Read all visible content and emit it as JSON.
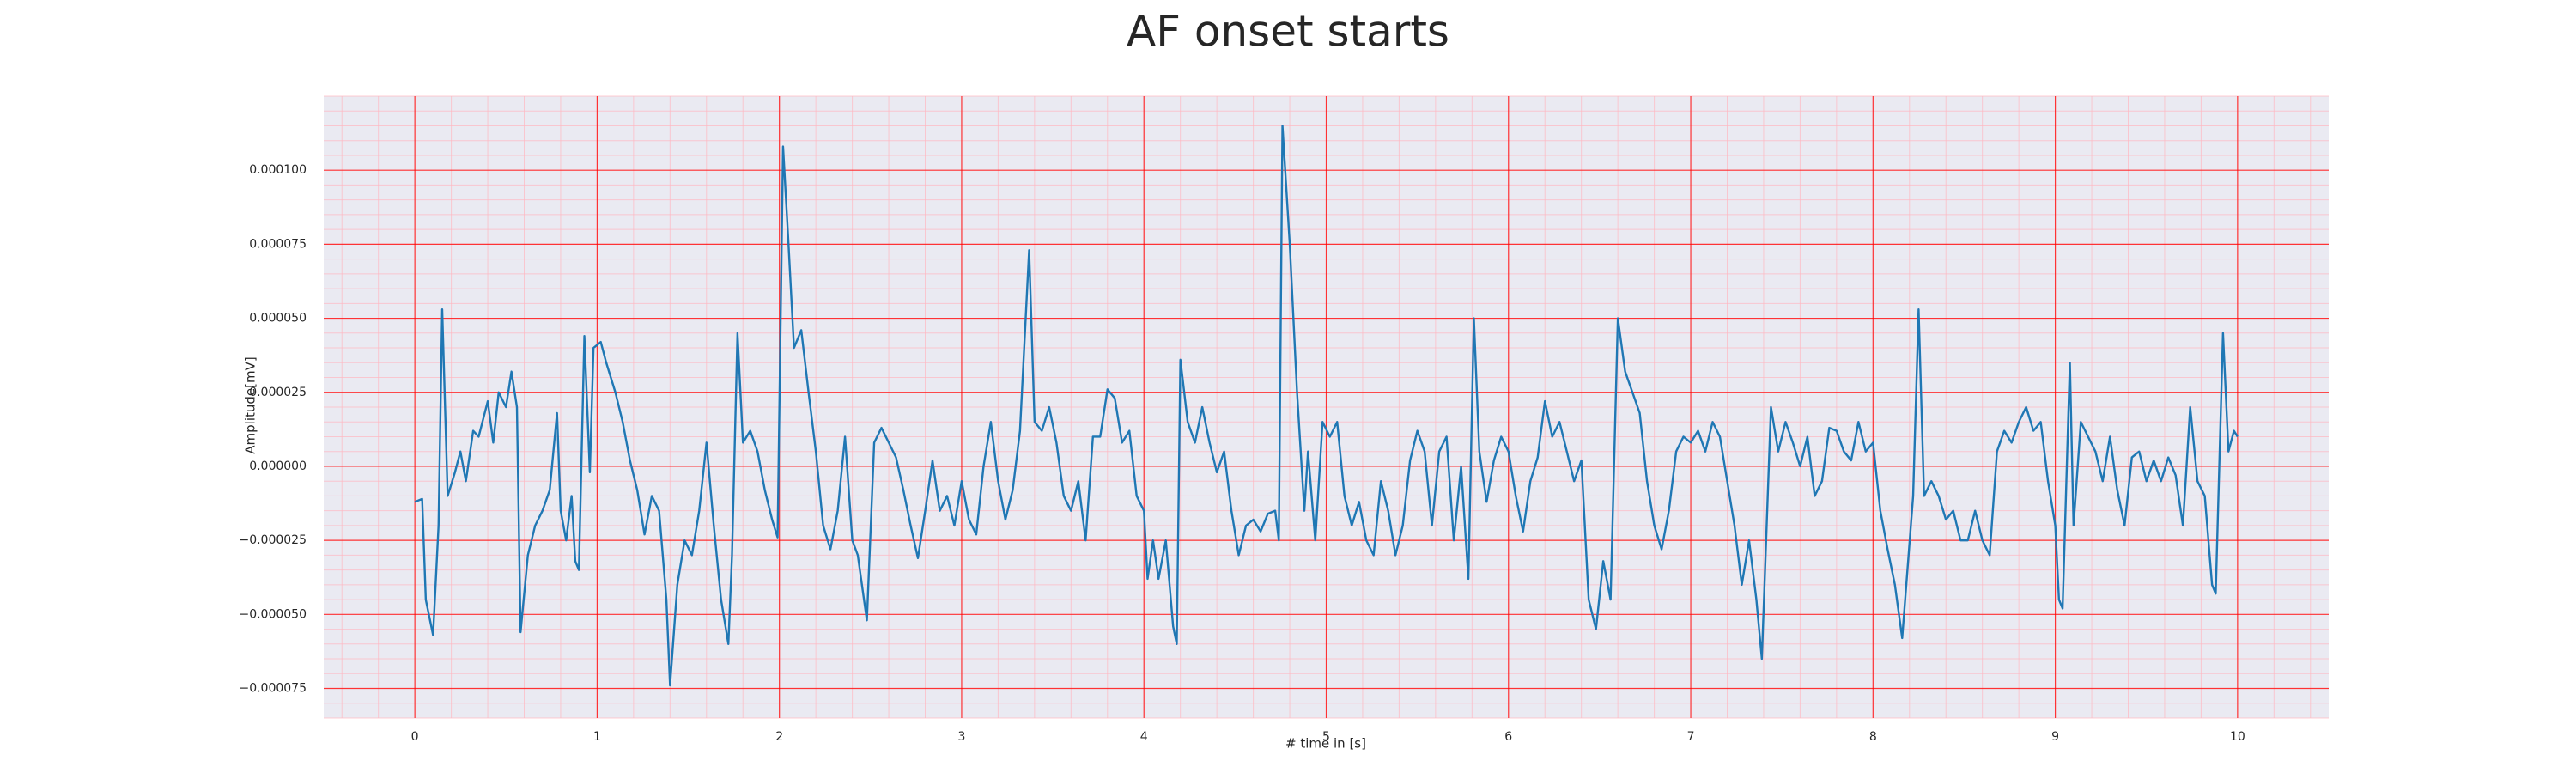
{
  "chart_data": {
    "type": "line",
    "title": "AF onset starts",
    "x_label": "# time in [s]",
    "y_label": "Amplitude[mV]",
    "color": "#1f77b4",
    "background": "#eaeaf2",
    "grid": true,
    "grid_color": "#ff0000",
    "minor_grid_color": "#ffb6c1",
    "xlim": [
      -0.5,
      10.5
    ],
    "ylim": [
      -8.5e-05,
      0.000125
    ],
    "xticks": [
      0,
      1,
      2,
      3,
      4,
      5,
      6,
      7,
      8,
      9,
      10
    ],
    "yticks": [
      {
        "value": -7.5e-05,
        "label": "−0.000075"
      },
      {
        "value": -5e-05,
        "label": "−0.000050"
      },
      {
        "value": -2.5e-05,
        "label": "−0.000025"
      },
      {
        "value": 0,
        "label": "0.000000"
      },
      {
        "value": 2.5e-05,
        "label": "0.000025"
      },
      {
        "value": 5e-05,
        "label": "0.000050"
      },
      {
        "value": 7.5e-05,
        "label": "0.000075"
      },
      {
        "value": 0.0001,
        "label": "0.000100"
      }
    ],
    "x": [
      0,
      0.04,
      0.06,
      0.1,
      0.13,
      0.15,
      0.18,
      0.22,
      0.25,
      0.28,
      0.32,
      0.35,
      0.4,
      0.43,
      0.46,
      0.5,
      0.53,
      0.56,
      0.58,
      0.62,
      0.66,
      0.7,
      0.74,
      0.78,
      0.8,
      0.83,
      0.86,
      0.88,
      0.9,
      0.93,
      0.96,
      0.98,
      1.02,
      1.05,
      1.1,
      1.14,
      1.18,
      1.22,
      1.26,
      1.3,
      1.34,
      1.38,
      1.4,
      1.44,
      1.48,
      1.52,
      1.56,
      1.6,
      1.64,
      1.68,
      1.72,
      1.74,
      1.77,
      1.8,
      1.84,
      1.88,
      1.92,
      1.96,
      1.99,
      2.02,
      2.05,
      2.08,
      2.12,
      2.16,
      2.2,
      2.24,
      2.28,
      2.32,
      2.36,
      2.4,
      2.43,
      2.48,
      2.52,
      2.56,
      2.6,
      2.64,
      2.68,
      2.72,
      2.76,
      2.8,
      2.84,
      2.88,
      2.92,
      2.96,
      3,
      3.04,
      3.08,
      3.12,
      3.16,
      3.2,
      3.24,
      3.28,
      3.32,
      3.37,
      3.4,
      3.44,
      3.48,
      3.52,
      3.56,
      3.6,
      3.64,
      3.68,
      3.72,
      3.76,
      3.8,
      3.84,
      3.88,
      3.92,
      3.96,
      4,
      4.02,
      4.05,
      4.08,
      4.12,
      4.16,
      4.18,
      4.2,
      4.24,
      4.28,
      4.32,
      4.36,
      4.4,
      4.44,
      4.48,
      4.52,
      4.56,
      4.6,
      4.64,
      4.68,
      4.72,
      4.74,
      4.76,
      4.8,
      4.84,
      4.88,
      4.9,
      4.94,
      4.98,
      5.02,
      5.06,
      5.1,
      5.14,
      5.18,
      5.22,
      5.26,
      5.3,
      5.34,
      5.38,
      5.42,
      5.46,
      5.5,
      5.54,
      5.58,
      5.62,
      5.66,
      5.7,
      5.74,
      5.78,
      5.81,
      5.84,
      5.88,
      5.92,
      5.96,
      6,
      6.04,
      6.08,
      6.12,
      6.16,
      6.2,
      6.24,
      6.28,
      6.32,
      6.36,
      6.4,
      6.44,
      6.48,
      6.52,
      6.56,
      6.6,
      6.64,
      6.68,
      6.72,
      6.76,
      6.8,
      6.84,
      6.88,
      6.92,
      6.96,
      7,
      7.04,
      7.08,
      7.12,
      7.16,
      7.2,
      7.24,
      7.28,
      7.32,
      7.36,
      7.39,
      7.44,
      7.48,
      7.52,
      7.56,
      7.6,
      7.64,
      7.68,
      7.72,
      7.76,
      7.8,
      7.84,
      7.88,
      7.92,
      7.96,
      8,
      8.04,
      8.08,
      8.12,
      8.16,
      8.22,
      8.25,
      8.28,
      8.32,
      8.36,
      8.4,
      8.44,
      8.48,
      8.52,
      8.56,
      8.6,
      8.64,
      8.68,
      8.72,
      8.76,
      8.8,
      8.84,
      8.88,
      8.92,
      8.96,
      9,
      9.02,
      9.04,
      9.08,
      9.1,
      9.14,
      9.18,
      9.22,
      9.26,
      9.3,
      9.34,
      9.38,
      9.42,
      9.46,
      9.5,
      9.54,
      9.58,
      9.62,
      9.66,
      9.7,
      9.74,
      9.78,
      9.82,
      9.86,
      9.88,
      9.92,
      9.95,
      9.98,
      10
    ],
    "values": [
      -1.2e-05,
      -1.1e-05,
      -4.5e-05,
      -5.7e-05,
      -2e-05,
      5.3e-05,
      -1e-05,
      -2e-06,
      5e-06,
      -5e-06,
      1.2e-05,
      1e-05,
      2.2e-05,
      8e-06,
      2.5e-05,
      2e-05,
      3.2e-05,
      2e-05,
      -5.6e-05,
      -3e-05,
      -2e-05,
      -1.5e-05,
      -8e-06,
      1.8e-05,
      -1.5e-05,
      -2.5e-05,
      -1e-05,
      -3.2e-05,
      -3.5e-05,
      4.4e-05,
      -2e-06,
      4e-05,
      4.2e-05,
      3.5e-05,
      2.5e-05,
      1.5e-05,
      2e-06,
      -8e-06,
      -2.3e-05,
      -1e-05,
      -1.5e-05,
      -4.5e-05,
      -7.4e-05,
      -4e-05,
      -2.5e-05,
      -3e-05,
      -1.5e-05,
      8e-06,
      -2e-05,
      -4.5e-05,
      -6e-05,
      -3e-05,
      4.5e-05,
      8e-06,
      1.2e-05,
      5e-06,
      -8e-06,
      -1.8e-05,
      -2.4e-05,
      0.000108,
      7.5e-05,
      4e-05,
      4.6e-05,
      2.5e-05,
      5e-06,
      -2e-05,
      -2.8e-05,
      -1.5e-05,
      1e-05,
      -2.5e-05,
      -3e-05,
      -5.2e-05,
      8e-06,
      1.3e-05,
      8e-06,
      3e-06,
      -8e-06,
      -2e-05,
      -3.1e-05,
      -1.5e-05,
      2e-06,
      -1.5e-05,
      -1e-05,
      -2e-05,
      -5e-06,
      -1.8e-05,
      -2.3e-05,
      0,
      1.5e-05,
      -5e-06,
      -1.8e-05,
      -8e-06,
      1.2e-05,
      7.3e-05,
      1.5e-05,
      1.2e-05,
      2e-05,
      8e-06,
      -1e-05,
      -1.5e-05,
      -5e-06,
      -2.5e-05,
      1e-05,
      1e-05,
      2.6e-05,
      2.3e-05,
      8e-06,
      1.2e-05,
      -1e-05,
      -1.5e-05,
      -3.8e-05,
      -2.5e-05,
      -3.8e-05,
      -2.5e-05,
      -5.4e-05,
      -6e-05,
      3.6e-05,
      1.5e-05,
      8e-06,
      2e-05,
      8e-06,
      -2e-06,
      5e-06,
      -1.5e-05,
      -3e-05,
      -2e-05,
      -1.8e-05,
      -2.2e-05,
      -1.6e-05,
      -1.5e-05,
      -2.5e-05,
      0.000115,
      7.5e-05,
      2.5e-05,
      -1.5e-05,
      5e-06,
      -2.5e-05,
      1.5e-05,
      1e-05,
      1.5e-05,
      -1e-05,
      -2e-05,
      -1.2e-05,
      -2.5e-05,
      -3e-05,
      -5e-06,
      -1.5e-05,
      -3e-05,
      -2e-05,
      2e-06,
      1.2e-05,
      5e-06,
      -2e-05,
      5e-06,
      1e-05,
      -2.5e-05,
      0,
      -3.8e-05,
      5e-05,
      5e-06,
      -1.2e-05,
      2e-06,
      1e-05,
      5e-06,
      -1e-05,
      -2.2e-05,
      -5e-06,
      3e-06,
      2.2e-05,
      1e-05,
      1.5e-05,
      5e-06,
      -5e-06,
      2e-06,
      -4.5e-05,
      -5.5e-05,
      -3.2e-05,
      -4.5e-05,
      5e-05,
      3.2e-05,
      2.5e-05,
      1.8e-05,
      -5e-06,
      -2e-05,
      -2.8e-05,
      -1.5e-05,
      5e-06,
      1e-05,
      8e-06,
      1.2e-05,
      5e-06,
      1.5e-05,
      1e-05,
      -5e-06,
      -2e-05,
      -4e-05,
      -2.5e-05,
      -4.5e-05,
      -6.5e-05,
      2e-05,
      5e-06,
      1.5e-05,
      8e-06,
      0,
      1e-05,
      -1e-05,
      -5e-06,
      1.3e-05,
      1.2e-05,
      5e-06,
      2e-06,
      1.5e-05,
      5e-06,
      8e-06,
      -1.5e-05,
      -2.8e-05,
      -4e-05,
      -5.8e-05,
      -1e-05,
      5.3e-05,
      -1e-05,
      -5e-06,
      -1e-05,
      -1.8e-05,
      -1.5e-05,
      -2.5e-05,
      -2.5e-05,
      -1.5e-05,
      -2.5e-05,
      -3e-05,
      5e-06,
      1.2e-05,
      8e-06,
      1.5e-05,
      2e-05,
      1.2e-05,
      1.5e-05,
      -5e-06,
      -2e-05,
      -4.5e-05,
      -4.8e-05,
      3.5e-05,
      -2e-05,
      1.5e-05,
      1e-05,
      5e-06,
      -5e-06,
      1e-05,
      -8e-06,
      -2e-05,
      3e-06,
      5e-06,
      -5e-06,
      2e-06,
      -5e-06,
      3e-06,
      -3e-06,
      -2e-05,
      2e-05,
      -5e-06,
      -1e-05,
      -4e-05,
      -4.3e-05,
      4.5e-05,
      5e-06,
      1.2e-05,
      1e-05
    ]
  }
}
